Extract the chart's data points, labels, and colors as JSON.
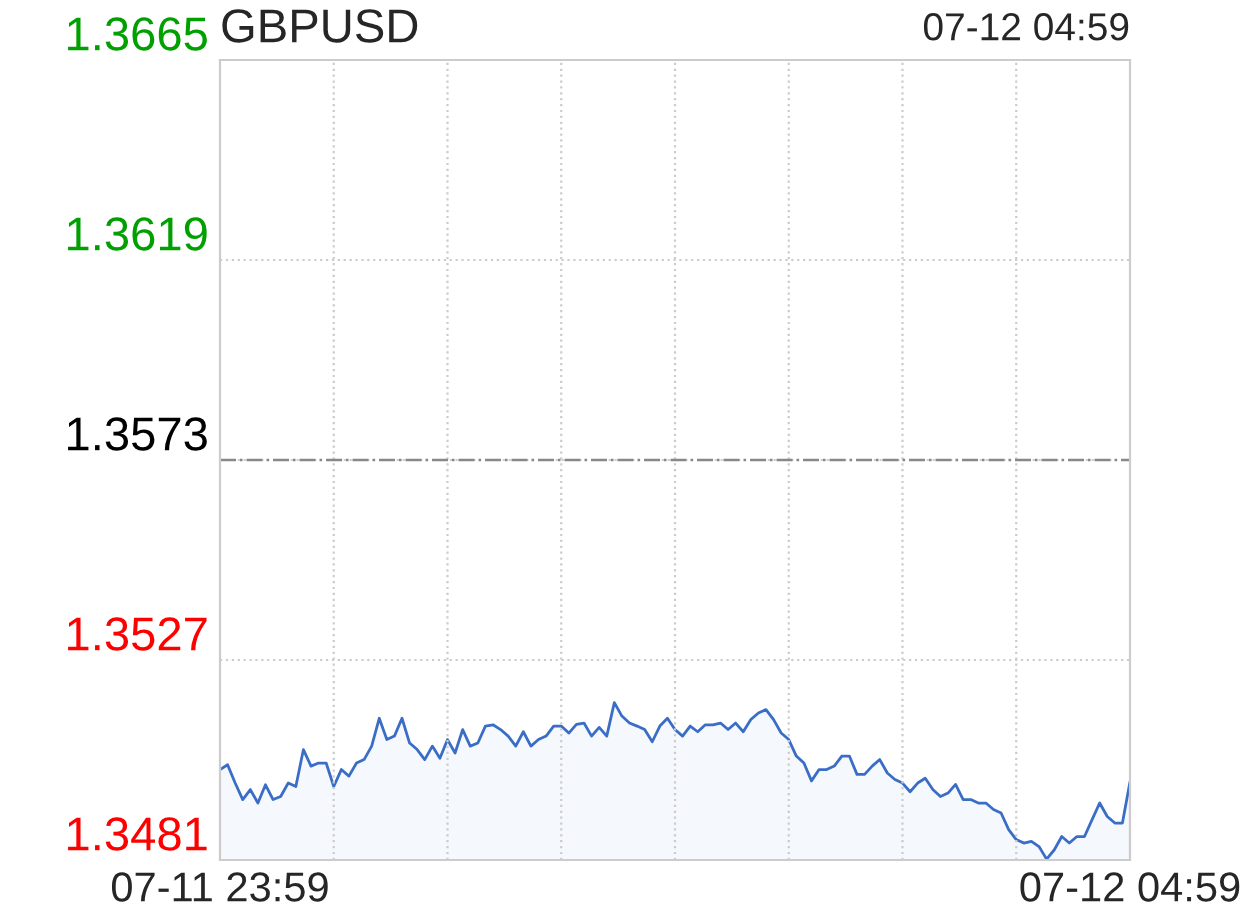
{
  "chart_data": {
    "type": "area",
    "title": "GBPUSD",
    "annotations": [
      "07-12 04:59"
    ],
    "categories": [
      "07-11 23:59",
      null,
      null,
      null,
      null,
      null,
      null,
      null,
      null,
      null,
      null,
      null,
      null,
      null,
      null,
      null,
      null,
      null,
      null,
      null,
      null,
      null,
      null,
      null,
      null,
      null,
      null,
      null,
      null,
      null,
      null,
      null,
      null,
      null,
      null,
      null,
      null,
      null,
      null,
      null,
      null,
      null,
      null,
      null,
      null,
      null,
      null,
      null,
      null,
      null,
      null,
      null,
      null,
      null,
      null,
      null,
      null,
      null,
      null,
      null,
      null,
      null,
      null,
      null,
      null,
      null,
      null,
      null,
      null,
      null,
      null,
      null,
      null,
      null,
      null,
      null,
      null,
      null,
      null,
      null,
      null,
      null,
      null,
      null,
      null,
      null,
      null,
      null,
      null,
      null,
      null,
      null,
      null,
      null,
      null,
      null,
      null,
      null,
      null,
      null,
      null,
      null,
      null,
      null,
      null,
      null,
      null,
      null,
      null,
      null,
      null,
      null,
      null,
      null,
      null,
      null,
      null,
      null,
      null,
      null,
      "07-12 04:59"
    ],
    "series": [
      {
        "color": "#3a6dc6",
        "values": [
          1.35018,
          1.35029,
          1.34987,
          1.34949,
          1.34972,
          1.34941,
          1.34983,
          1.34949,
          1.34956,
          1.34987,
          1.34979,
          1.35064,
          1.35026,
          1.35033,
          1.35033,
          1.34979,
          1.35018,
          1.35003,
          1.35033,
          1.35041,
          1.35072,
          1.35136,
          1.35087,
          1.35095,
          1.35136,
          1.35079,
          1.35064,
          1.35041,
          1.35072,
          1.35044,
          1.35087,
          1.35056,
          1.3511,
          1.35072,
          1.35079,
          1.35118,
          1.35121,
          1.3511,
          1.35095,
          1.35072,
          1.35105,
          1.35072,
          1.35087,
          1.35095,
          1.35118,
          1.35118,
          1.35102,
          1.35122,
          1.35125,
          1.35095,
          1.35115,
          1.35095,
          1.35172,
          1.35141,
          1.35125,
          1.35118,
          1.3511,
          1.35082,
          1.35118,
          1.35136,
          1.3511,
          1.35095,
          1.35118,
          1.35105,
          1.35121,
          1.35121,
          1.35125,
          1.3511,
          1.35125,
          1.35105,
          1.35133,
          1.35148,
          1.35156,
          1.35133,
          1.35102,
          1.35087,
          1.35049,
          1.35033,
          1.34992,
          1.35018,
          1.35018,
          1.35026,
          1.35049,
          1.35049,
          1.35007,
          1.35007,
          1.35026,
          1.35041,
          1.3501,
          1.34995,
          1.34987,
          1.34967,
          1.34987,
          1.34998,
          1.34972,
          1.34956,
          1.34964,
          1.34984,
          1.34949,
          1.34949,
          1.34941,
          1.34941,
          1.34926,
          1.34918,
          1.3488,
          1.34857,
          1.34849,
          1.34853,
          1.34841,
          1.34812,
          1.34833,
          1.34864,
          1.34849,
          1.34864,
          1.34864,
          1.34903,
          1.34941,
          1.3491,
          1.34895,
          1.34895,
          1.3499
        ]
      }
    ],
    "ylim": [
      1.3481,
      1.3665
    ],
    "yticks": [
      1.3481,
      1.3527,
      1.3573,
      1.3619,
      1.3665
    ],
    "ref_lines": [
      {
        "axis": "y",
        "value": 1.3573,
        "color": "#888888",
        "line_style": "dashdot"
      }
    ],
    "grid": true
  }
}
